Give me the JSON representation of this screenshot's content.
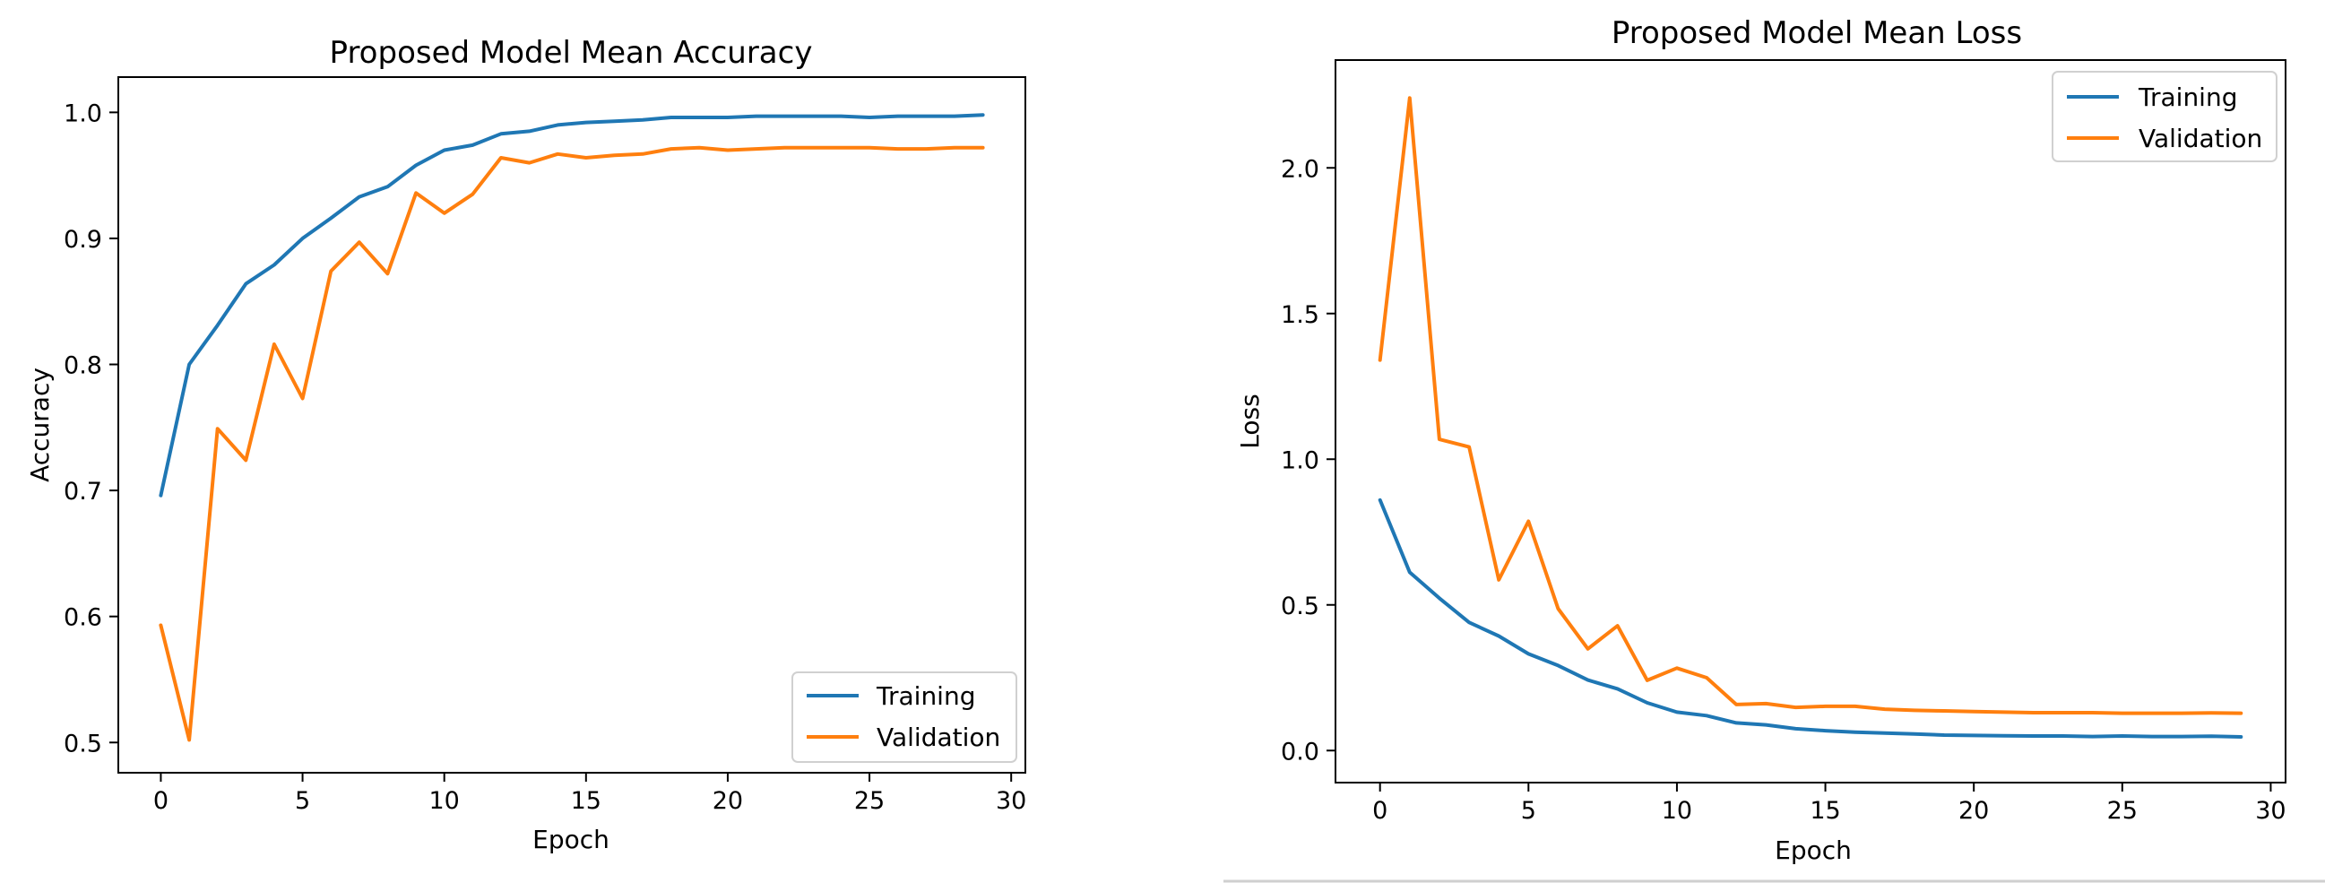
{
  "chart_data": [
    {
      "type": "line",
      "title": "Proposed Model Mean Accuracy",
      "xlabel": "Epoch",
      "ylabel": "Accuracy",
      "xlim": [
        -1.5,
        30.5
      ],
      "ylim": [
        0.476,
        1.028
      ],
      "xticks": [
        0,
        5,
        10,
        15,
        20,
        25,
        30
      ],
      "yticks": [
        0.5,
        0.6,
        0.7,
        0.8,
        0.9,
        1.0
      ],
      "xtick_labels": [
        "0",
        "5",
        "10",
        "15",
        "20",
        "25",
        "30"
      ],
      "ytick_labels": [
        "0.5",
        "0.6",
        "0.7",
        "0.8",
        "0.9",
        "1.0"
      ],
      "legend_position": "bottom-right",
      "x": [
        0,
        1,
        2,
        3,
        4,
        5,
        6,
        7,
        8,
        9,
        10,
        11,
        12,
        13,
        14,
        15,
        16,
        17,
        18,
        19,
        20,
        21,
        22,
        23,
        24,
        25,
        26,
        27,
        28,
        29
      ],
      "series": [
        {
          "name": "Training",
          "color": "#1f77b4",
          "values": [
            0.696,
            0.8,
            0.831,
            0.864,
            0.879,
            0.9,
            0.916,
            0.933,
            0.941,
            0.958,
            0.97,
            0.974,
            0.983,
            0.985,
            0.99,
            0.992,
            0.993,
            0.994,
            0.996,
            0.996,
            0.996,
            0.997,
            0.997,
            0.997,
            0.997,
            0.996,
            0.997,
            0.997,
            0.997,
            0.998
          ]
        },
        {
          "name": "Validation",
          "color": "#ff7f0e",
          "values": [
            0.593,
            0.502,
            0.749,
            0.724,
            0.816,
            0.773,
            0.874,
            0.897,
            0.872,
            0.936,
            0.92,
            0.935,
            0.964,
            0.96,
            0.967,
            0.964,
            0.966,
            0.967,
            0.971,
            0.972,
            0.97,
            0.971,
            0.972,
            0.972,
            0.972,
            0.972,
            0.971,
            0.971,
            0.972,
            0.972
          ]
        }
      ]
    },
    {
      "type": "line",
      "title": "Proposed Model Mean Loss",
      "xlabel": "Epoch",
      "ylabel": "Loss",
      "xlim": [
        -1.5,
        30.5
      ],
      "ylim": [
        -0.11,
        2.37
      ],
      "xticks": [
        0,
        5,
        10,
        15,
        20,
        25,
        30
      ],
      "yticks": [
        0.0,
        0.5,
        1.0,
        1.5,
        2.0
      ],
      "xtick_labels": [
        "0",
        "5",
        "10",
        "15",
        "20",
        "25",
        "30"
      ],
      "ytick_labels": [
        "0.0",
        "0.5",
        "1.0",
        "1.5",
        "2.0"
      ],
      "legend_position": "top-right",
      "x": [
        0,
        1,
        2,
        3,
        4,
        5,
        6,
        7,
        8,
        9,
        10,
        11,
        12,
        13,
        14,
        15,
        16,
        17,
        18,
        19,
        20,
        21,
        22,
        23,
        24,
        25,
        26,
        27,
        28,
        29
      ],
      "series": [
        {
          "name": "Training",
          "color": "#1f77b4",
          "values": [
            0.86,
            0.612,
            0.523,
            0.44,
            0.393,
            0.332,
            0.292,
            0.242,
            0.212,
            0.164,
            0.132,
            0.12,
            0.095,
            0.088,
            0.075,
            0.068,
            0.063,
            0.06,
            0.057,
            0.053,
            0.052,
            0.051,
            0.05,
            0.05,
            0.048,
            0.05,
            0.048,
            0.048,
            0.049,
            0.047
          ]
        },
        {
          "name": "Validation",
          "color": "#ff7f0e",
          "values": [
            1.34,
            2.24,
            1.068,
            1.042,
            0.586,
            0.787,
            0.487,
            0.349,
            0.428,
            0.241,
            0.283,
            0.25,
            0.158,
            0.161,
            0.148,
            0.152,
            0.152,
            0.142,
            0.138,
            0.136,
            0.134,
            0.132,
            0.13,
            0.13,
            0.13,
            0.128,
            0.128,
            0.128,
            0.129,
            0.128
          ]
        }
      ]
    }
  ]
}
